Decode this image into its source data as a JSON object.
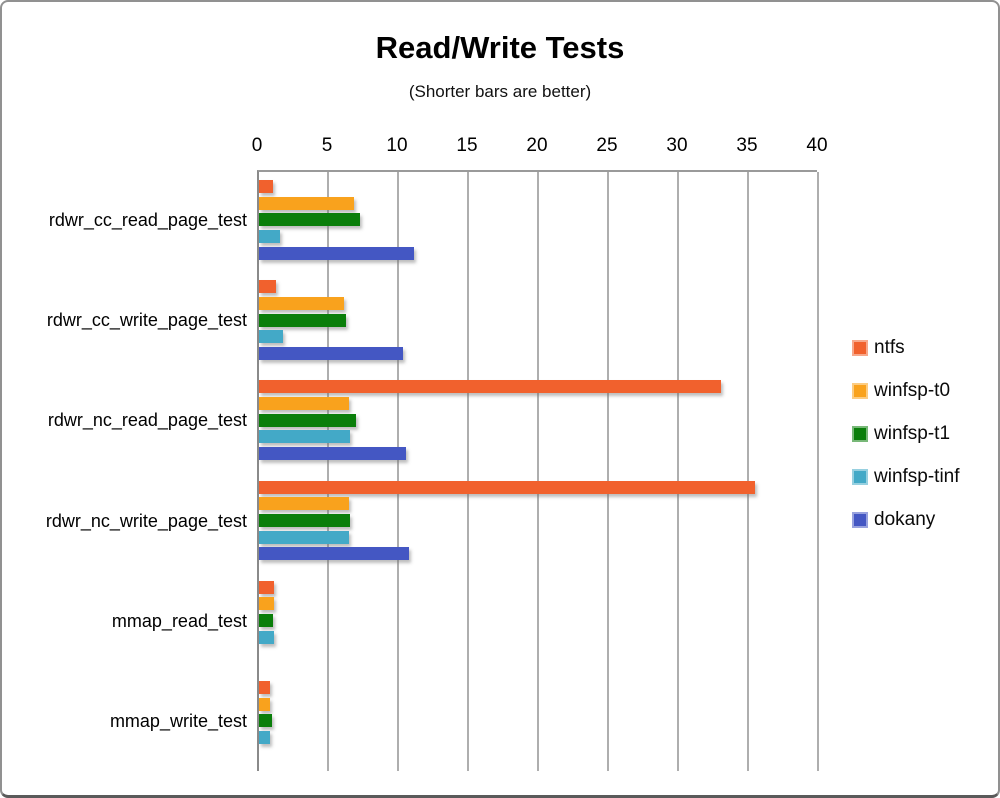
{
  "title": "Read/Write Tests",
  "subtitle": "(Shorter bars are better)",
  "chart_data": {
    "type": "bar",
    "orientation": "horizontal",
    "axis_position": "top",
    "grid": true,
    "legend_position": "right",
    "xlim": [
      0,
      40
    ],
    "xticks": [
      0,
      5,
      10,
      15,
      20,
      25,
      30,
      35,
      40
    ],
    "categories": [
      "rdwr_cc_read_page_test",
      "rdwr_cc_write_page_test",
      "rdwr_nc_read_page_test",
      "rdwr_nc_write_page_test",
      "mmap_read_test",
      "mmap_write_test"
    ],
    "series": [
      {
        "name": "ntfs",
        "color": "#F1612D",
        "values": [
          1.0,
          1.2,
          33.0,
          35.4,
          1.1,
          0.8
        ]
      },
      {
        "name": "winfsp-t0",
        "color": "#F9A21D",
        "values": [
          6.8,
          6.1,
          6.4,
          6.4,
          1.1,
          0.8
        ]
      },
      {
        "name": "winfsp-t1",
        "color": "#0A7E0A",
        "values": [
          7.2,
          6.2,
          6.9,
          6.5,
          1.0,
          0.9
        ]
      },
      {
        "name": "winfsp-tinf",
        "color": "#43A9C7",
        "values": [
          1.5,
          1.7,
          6.5,
          6.4,
          1.1,
          0.8
        ]
      },
      {
        "name": "dokany",
        "color": "#4457C3",
        "values": [
          11.1,
          10.3,
          10.5,
          10.7,
          0,
          0
        ]
      }
    ],
    "colors": {
      "gridline": "#aeaeae",
      "axis": "#8a8a8a",
      "text": "#000000"
    }
  }
}
